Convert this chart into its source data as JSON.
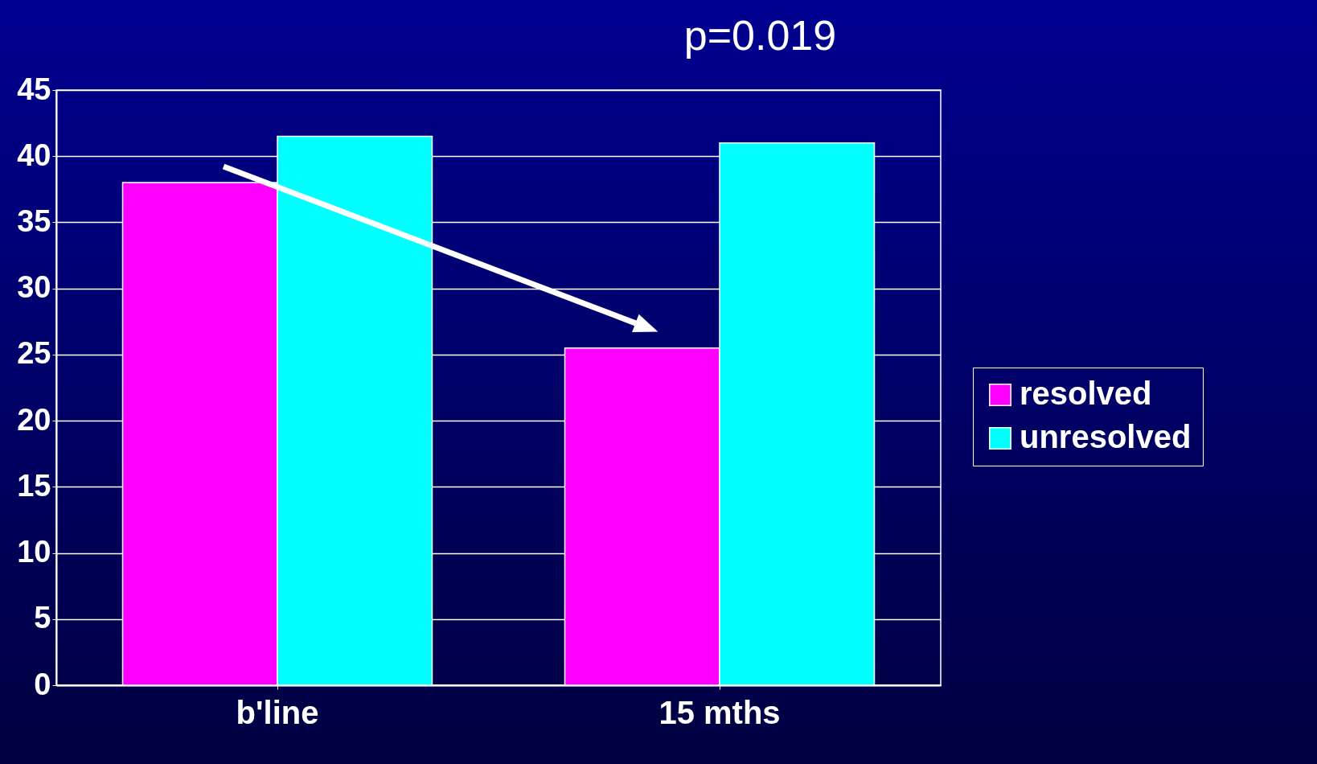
{
  "chart_data": {
    "type": "bar",
    "annotations": [
      "p=0.019"
    ],
    "categories": [
      "b'line",
      "15 mths"
    ],
    "series": [
      {
        "name": "resolved",
        "color": "#ff00ff",
        "values": [
          38,
          25.5
        ]
      },
      {
        "name": "unresolved",
        "color": "#00ffff",
        "values": [
          41.5,
          41
        ]
      }
    ],
    "ylim": [
      0,
      45
    ],
    "yticks": [
      0,
      5,
      10,
      15,
      20,
      25,
      30,
      35,
      40,
      45
    ],
    "grid": "y",
    "legend": "right"
  }
}
